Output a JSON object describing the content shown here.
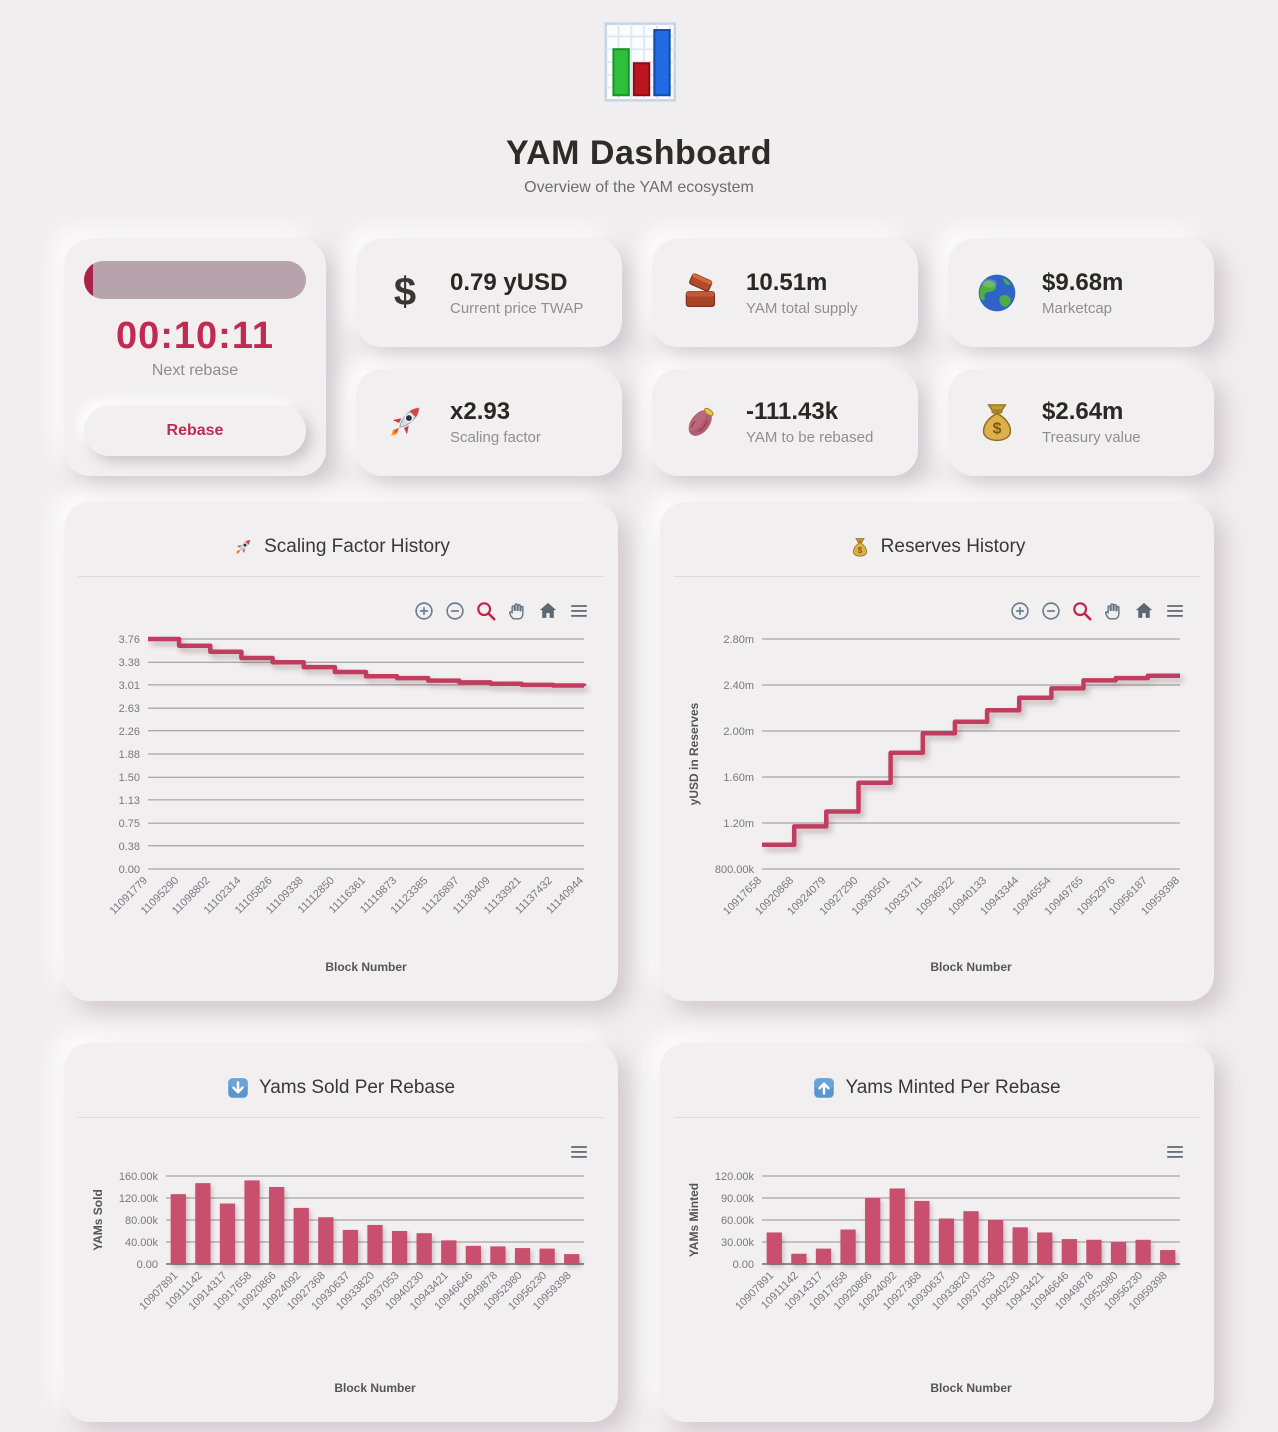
{
  "app": {
    "title": "YAM Dashboard",
    "subtitle": "Overview of the YAM ecosystem",
    "logo_icon": "bar-chart-icon"
  },
  "rebase_card": {
    "timer": "00:10:11",
    "timer_label": "Next rebase",
    "button_label": "Rebase",
    "progress_percent": 4
  },
  "stats": [
    {
      "icon": "dollar-icon",
      "value": "0.79 yUSD",
      "label": "Current price TWAP"
    },
    {
      "icon": "brick-icon",
      "value": "10.51m",
      "label": "YAM total supply"
    },
    {
      "icon": "globe-icon",
      "value": "$9.68m",
      "label": "Marketcap"
    },
    {
      "icon": "rocket-icon",
      "value": "x2.93",
      "label": "Scaling factor"
    },
    {
      "icon": "sweet-potato-icon",
      "value": "-111.43k",
      "label": "YAM to be rebased"
    },
    {
      "icon": "money-bag-icon",
      "value": "$2.64m",
      "label": "Treasury value"
    }
  ],
  "colors": {
    "background": "#f1eeef",
    "accent_line": "#c23c5f",
    "accent_bar": "#c84f6d",
    "timer_red": "#c22a52",
    "grid_line": "#919194",
    "axis_line": "#7d7d80",
    "tick_text": "#77787c",
    "axis_title_text": "#54555a",
    "toolbar_gray": "#62717f"
  },
  "chart_data": [
    {
      "type": "line",
      "step": true,
      "title": "Scaling Factor History",
      "title_icon": "rocket-icon",
      "x": [
        "11091779",
        "11095290",
        "11098802",
        "11102314",
        "11105826",
        "11109338",
        "11112850",
        "11116361",
        "11119873",
        "11123385",
        "11126897",
        "11130409",
        "11133921",
        "11137432",
        "11140944"
      ],
      "values": [
        3.76,
        3.65,
        3.55,
        3.45,
        3.38,
        3.3,
        3.22,
        3.15,
        3.12,
        3.08,
        3.05,
        3.03,
        3.01,
        3.0,
        2.99
      ],
      "xlabel": "Block Number",
      "ylabel": "",
      "ytick_values": [
        3.76,
        3.38,
        3.01,
        2.63,
        2.26,
        1.88,
        1.5,
        1.13,
        0.75,
        0.38,
        0
      ],
      "ytick_labels": [
        "3.76",
        "3.38",
        "3.01",
        "2.63",
        "2.26",
        "1.88",
        "1.50",
        "1.13",
        "0.75",
        "0.38",
        "0.00"
      ],
      "ylim": [
        0,
        3.76
      ],
      "grid": true,
      "legend": "none",
      "toolbar": [
        "zoom-in",
        "zoom-out",
        "selection-zoom",
        "pan",
        "home",
        "menu"
      ]
    },
    {
      "type": "line",
      "step": true,
      "title": "Reserves History",
      "title_icon": "money-bag-icon",
      "x": [
        "10917658",
        "10920868",
        "10924079",
        "10927290",
        "10930501",
        "10933711",
        "10936922",
        "10940133",
        "10943344",
        "10946554",
        "10949765",
        "10952976",
        "10956187",
        "10959398"
      ],
      "values": [
        1010000,
        1170000,
        1300000,
        1550000,
        1810000,
        1980000,
        2080000,
        2180000,
        2290000,
        2370000,
        2440000,
        2460000,
        2480000,
        2480000
      ],
      "xlabel": "Block Number",
      "ylabel": "yUSD in Reserves",
      "ytick_values": [
        2800000,
        2400000,
        2000000,
        1600000,
        1200000,
        800000
      ],
      "ytick_labels": [
        "2.80m",
        "2.40m",
        "2.00m",
        "1.60m",
        "1.20m",
        "800.00k"
      ],
      "ylim": [
        800000,
        2800000
      ],
      "grid": true,
      "legend": "none",
      "toolbar": [
        "zoom-in",
        "zoom-out",
        "selection-zoom",
        "pan",
        "home",
        "menu"
      ]
    },
    {
      "type": "bar",
      "title": "Yams Sold Per Rebase",
      "title_icon": "down-arrow-icon",
      "categories": [
        "10907891",
        "10911142",
        "10914317",
        "10917658",
        "10920866",
        "10924092",
        "10927368",
        "10930637",
        "10933820",
        "10937053",
        "10940230",
        "10943421",
        "10946646",
        "10949878",
        "10952980",
        "10956230",
        "10959398"
      ],
      "values": [
        127000,
        147000,
        110000,
        152000,
        140000,
        102000,
        85000,
        62000,
        71000,
        60000,
        56000,
        43000,
        33000,
        32000,
        29000,
        28000,
        18000
      ],
      "xlabel": "Block Number",
      "ylabel": "YAMs Sold",
      "ytick_values": [
        160000,
        120000,
        80000,
        40000,
        0
      ],
      "ytick_labels": [
        "160.00k",
        "120.00k",
        "80.00k",
        "40.00k",
        "0.00"
      ],
      "ylim": [
        0,
        160000
      ],
      "grid": true,
      "legend": "none",
      "toolbar": [
        "menu"
      ]
    },
    {
      "type": "bar",
      "title": "Yams Minted Per Rebase",
      "title_icon": "up-arrow-icon",
      "categories": [
        "10907891",
        "10911142",
        "10914317",
        "10917658",
        "10920866",
        "10924092",
        "10927368",
        "10930637",
        "10933820",
        "10937053",
        "10940230",
        "10943421",
        "10946646",
        "10949878",
        "10952980",
        "10956230",
        "10959398"
      ],
      "values": [
        43000,
        14000,
        21000,
        47000,
        90000,
        103000,
        86000,
        62000,
        72000,
        60000,
        50000,
        43000,
        34000,
        33000,
        30000,
        33000,
        19000
      ],
      "xlabel": "Block Number",
      "ylabel": "YAMs Minted",
      "ytick_values": [
        120000,
        90000,
        60000,
        30000,
        0
      ],
      "ytick_labels": [
        "120.00k",
        "90.00k",
        "60.00k",
        "30.00k",
        "0.00"
      ],
      "ylim": [
        0,
        120000
      ],
      "grid": true,
      "legend": "none",
      "toolbar": [
        "menu"
      ]
    }
  ]
}
